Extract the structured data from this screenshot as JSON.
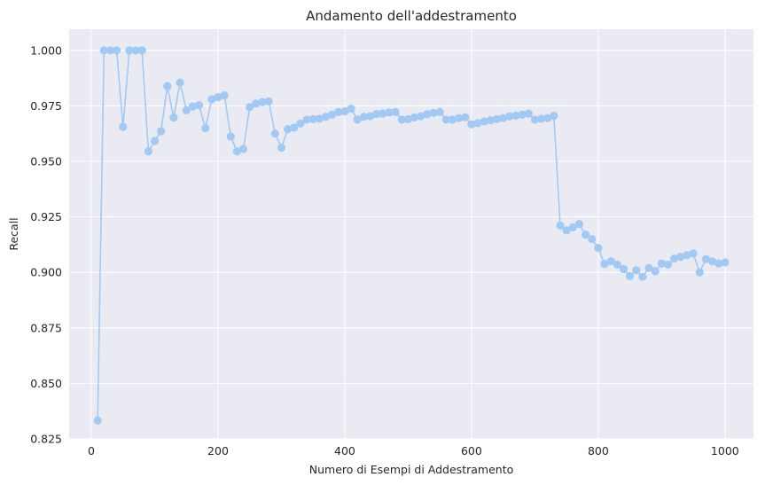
{
  "chart_data": {
    "type": "line",
    "title": "Andamento dell'addestramento",
    "xlabel": "Numero di Esempi di Addestramento",
    "ylabel": "Recall",
    "xlim": [
      -35,
      1045
    ],
    "ylim": [
      0.825,
      1.0095
    ],
    "x_ticks": [
      0,
      200,
      400,
      600,
      800,
      1000
    ],
    "y_ticks": [
      0.825,
      0.85,
      0.875,
      0.9,
      0.925,
      0.95,
      0.975,
      1.0
    ],
    "x_tick_labels": [
      "0",
      "200",
      "400",
      "600",
      "800",
      "1000"
    ],
    "y_tick_labels": [
      "0.825",
      "0.850",
      "0.875",
      "0.900",
      "0.925",
      "0.950",
      "0.975",
      "1.000"
    ],
    "grid": true,
    "marker": "circle",
    "background_color": "#eaeaf2",
    "line_color": "#a1c9f4",
    "series": [
      {
        "x": [
          10,
          20,
          30,
          40,
          50,
          60,
          70,
          80,
          90,
          100,
          110,
          120,
          130,
          140,
          150,
          160,
          170,
          180,
          190,
          200,
          210,
          220,
          230,
          240,
          250,
          260,
          270,
          280,
          290,
          300,
          310,
          320,
          330,
          340,
          350,
          360,
          370,
          380,
          390,
          400,
          410,
          420,
          430,
          440,
          450,
          460,
          470,
          480,
          490,
          500,
          510,
          520,
          530,
          540,
          550,
          560,
          570,
          580,
          590,
          600,
          610,
          620,
          630,
          640,
          650,
          660,
          670,
          680,
          690,
          700,
          710,
          720,
          730,
          740,
          750,
          760,
          770,
          780,
          790,
          800,
          810,
          820,
          830,
          840,
          850,
          860,
          870,
          880,
          890,
          900,
          910,
          920,
          930,
          940,
          950,
          960,
          970,
          980,
          990,
          1000
        ],
        "values": [
          0.8333,
          1.0,
          1.0,
          1.0,
          0.9655,
          1.0,
          1.0,
          1.0,
          0.9545,
          0.9592,
          0.9636,
          0.9839,
          0.9697,
          0.9855,
          0.973,
          0.9747,
          0.9753,
          0.9649,
          0.978,
          0.9789,
          0.9797,
          0.9612,
          0.9545,
          0.9556,
          0.9744,
          0.976,
          0.9767,
          0.977,
          0.9625,
          0.9562,
          0.9645,
          0.9652,
          0.9671,
          0.9688,
          0.969,
          0.9692,
          0.97,
          0.971,
          0.9722,
          0.9725,
          0.9737,
          0.9688,
          0.97,
          0.9703,
          0.9713,
          0.9715,
          0.972,
          0.9722,
          0.9688,
          0.969,
          0.9698,
          0.9703,
          0.9712,
          0.9718,
          0.9722,
          0.9688,
          0.9688,
          0.9695,
          0.9698,
          0.9667,
          0.9672,
          0.968,
          0.9685,
          0.969,
          0.9695,
          0.9702,
          0.9706,
          0.971,
          0.9715,
          0.9688,
          0.9692,
          0.9695,
          0.9705,
          0.9211,
          0.9189,
          0.9203,
          0.9218,
          0.917,
          0.915,
          0.911,
          0.9038,
          0.905,
          0.9035,
          0.9015,
          0.8983,
          0.901,
          0.898,
          0.902,
          0.9005,
          0.904,
          0.9035,
          0.9062,
          0.907,
          0.9078,
          0.9085,
          0.9,
          0.906,
          0.905,
          0.904,
          0.9045
        ]
      }
    ]
  }
}
